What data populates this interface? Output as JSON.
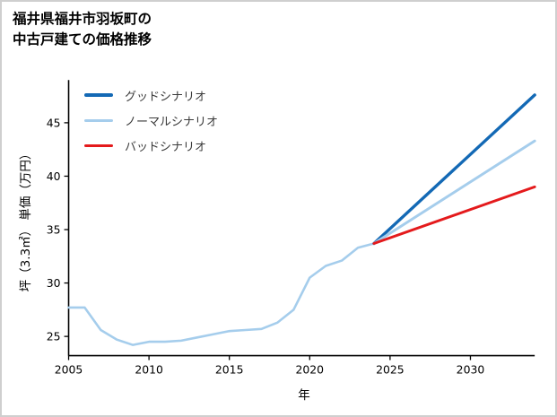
{
  "title": {
    "line1": "福井県福井市羽坂町の",
    "line2": "中古戸建ての価格推移"
  },
  "chart_data": {
    "type": "line",
    "title": "福井県福井市羽坂町の中古戸建ての価格推移",
    "xlabel": "年",
    "ylabel": "坪（3.3㎡） 単価（万円）",
    "xlim": [
      2005,
      2034
    ],
    "ylim": [
      23.2,
      49
    ],
    "x_ticks": [
      2005,
      2010,
      2015,
      2020,
      2025,
      2030
    ],
    "y_ticks": [
      25,
      30,
      35,
      40,
      45
    ],
    "grid": false,
    "legend_position": "upper-left",
    "historical": {
      "color": "#a5cdec",
      "x": [
        2005,
        2006,
        2007,
        2008,
        2009,
        2010,
        2011,
        2012,
        2013,
        2014,
        2015,
        2016,
        2017,
        2018,
        2019,
        2020,
        2021,
        2022,
        2023,
        2024
      ],
      "values": [
        27.7,
        27.7,
        25.6,
        24.7,
        24.2,
        24.5,
        24.5,
        24.6,
        24.9,
        25.2,
        25.5,
        25.6,
        25.7,
        26.3,
        27.5,
        30.5,
        31.6,
        32.1,
        33.3,
        33.7
      ]
    },
    "scenarios": [
      {
        "label": "グッドシナリオ",
        "color": "#1369b5",
        "x": [
          2024,
          2034
        ],
        "values": [
          33.7,
          47.6
        ]
      },
      {
        "label": "ノーマルシナリオ",
        "color": "#a5cdec",
        "x": [
          2024,
          2034
        ],
        "values": [
          33.7,
          43.3
        ]
      },
      {
        "label": "バッドシナリオ",
        "color": "#e41a1c",
        "x": [
          2024,
          2034
        ],
        "values": [
          33.7,
          39.0
        ]
      }
    ]
  }
}
